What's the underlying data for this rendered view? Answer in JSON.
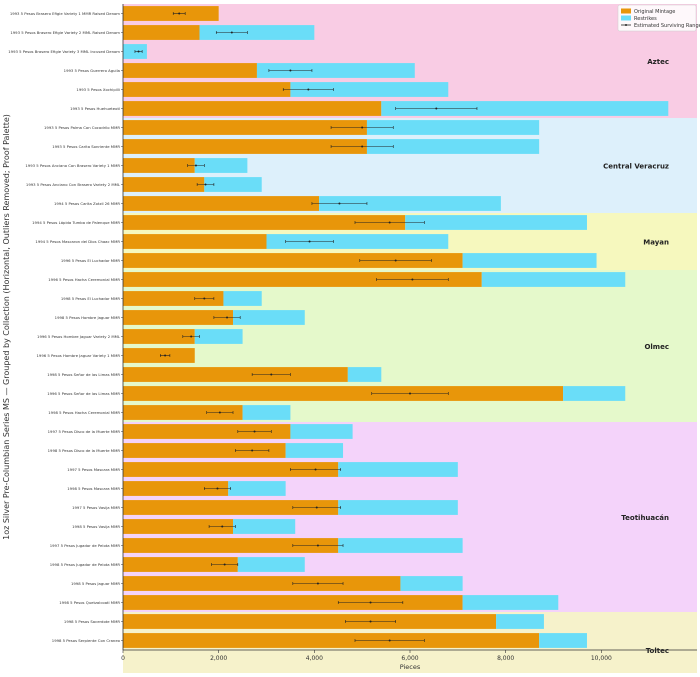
{
  "chart_data": {
    "type": "bar",
    "orientation": "horizontal",
    "stacked": true,
    "title": "",
    "xlabel": "Pieces",
    "ylabel": "1oz Silver Pre-Columbian Series MS — Grouped by Collection (Horizontal, Outliers Removed; Proof Palette)",
    "xlim": [
      0,
      12000
    ],
    "xticks": [
      0,
      2000,
      4000,
      6000,
      8000,
      10000
    ],
    "xtick_labels": [
      "0",
      "2,000",
      "4,000",
      "6,000",
      "8,000",
      "10,000"
    ],
    "grid": false,
    "legend_position": "top-right",
    "legend": [
      {
        "name": "Original Mintage",
        "color": "#E8960A",
        "kind": "bar"
      },
      {
        "name": "Restrikes",
        "color": "#6ADDF8",
        "kind": "bar"
      },
      {
        "name": "Estimated Surviving Range",
        "color": "#222222",
        "kind": "errorbar"
      }
    ],
    "colors": {
      "original": "#E8960A",
      "restrikes": "#6ADDF8",
      "errorbar": "#222222"
    },
    "groups": [
      {
        "name": "Aztec",
        "color": "#F9CCE4",
        "start": 0,
        "end": 5
      },
      {
        "name": "Central Veracruz",
        "color": "#DDF0FB",
        "start": 6,
        "end": 10
      },
      {
        "name": "Mayan",
        "color": "#F6F8BE",
        "start": 11,
        "end": 13
      },
      {
        "name": "Olmec",
        "color": "#E5F9CB",
        "start": 14,
        "end": 21
      },
      {
        "name": "Teotihuacán",
        "color": "#F4D3FA",
        "start": 22,
        "end": 31
      },
      {
        "name": "Toltec",
        "color": "#F6F2CB",
        "start": 32,
        "end": 35
      }
    ],
    "categories": [
      "1993 5 Pesos Brasero Efigie Variety 1 MMR Raised Denom",
      "1993 5 Pesos Brasero Efigie Variety 2 MML Raised Denom",
      "1993 5 Pesos Brasero Efigie Variety 3 MML Incused Denom",
      "1993 5 Pesos Guerrero Aguila",
      "1993 5 Pesos Xochipilli",
      "1993 5 Pesos Huehueteotl",
      "1993 5 Pesos Palma Con Cocodrilo MMR",
      "1993 5 Pesos Carita Sonriente MMR",
      "1993 5 Pesos Anciano Con Brasero Variety 1 MMR",
      "1993 5 Pesos Anciano Con Brasero Variety 2 MML",
      "1994 5 Pesos Carita Zotzil 26 MMR",
      "1994 5 Pesos Lápida Tumba de Palenque MMR",
      "1994 5 Pesos Mascaron del Dios Chaac MMR",
      "1996 5 Pesos El Luchador MMR",
      "1996 5 Pesos Hacha Ceremonial MMR",
      "1998 5 Pesos El Luchador MMR",
      "1998 5 Pesos Hombre Jaguar MMR",
      "1996 5 Pesos Hombre Jaguar Variety 2 MML",
      "1996 5 Pesos Hombre Jaguar Variety 1 MMR",
      "1998 5 Pesos Señor de las Limas MMR",
      "1996 5 Pesos Señor de las Limas MMR",
      "1998 5 Pesos Hacha Ceremonial MMR",
      "1997 5 Pesos Disco de la Muerte MMR",
      "1998 5 Pesos Disco de la Muerte MMR",
      "1997 5 Pesos Mascara MMR",
      "1998 5 Pesos Mascara MMR",
      "1997 5 Pesos Vasija MMR",
      "1998 5 Pesos Vasija MMR",
      "1997 5 Pesos Jugador de Pelota MMR",
      "1998 5 Pesos Jugador de Pelota MMR",
      "1998 5 Pesos Jaguar MMR",
      "1998 5 Pesos Quetzalcoatl MMR",
      "1998 5 Pesos Sacerdote MMR",
      "1998 5 Pesos Serpiente Con Craneo"
    ],
    "series": [
      {
        "name": "Original Mintage",
        "values": [
          2000,
          1600,
          0,
          2800,
          3500,
          5400,
          5100,
          5100,
          1500,
          1700,
          4100,
          5900,
          3000,
          7100,
          7500,
          2100,
          2300,
          1500,
          1500,
          4700,
          9200,
          2500,
          3500,
          3400,
          4500,
          2200,
          4500,
          2300,
          4500,
          2400,
          5800,
          7100,
          7800,
          8700
        ]
      },
      {
        "name": "Restrikes",
        "values": [
          0,
          2400,
          500,
          3300,
          3300,
          6000,
          3600,
          3600,
          1100,
          1200,
          3800,
          3800,
          3800,
          2800,
          3000,
          800,
          1500,
          1000,
          0,
          700,
          1300,
          1000,
          1300,
          1200,
          2500,
          1200,
          2500,
          1300,
          2600,
          1400,
          1300,
          2000,
          1000,
          1000
        ]
      }
    ],
    "error_ranges": [
      [
        1050,
        1300
      ],
      [
        1950,
        2600
      ],
      [
        250,
        400
      ],
      [
        3050,
        3950
      ],
      [
        3350,
        4400
      ],
      [
        5700,
        7400
      ],
      [
        4350,
        5650
      ],
      [
        4350,
        5650
      ],
      [
        1350,
        1700
      ],
      [
        1550,
        1900
      ],
      [
        3950,
        5100
      ],
      [
        4850,
        6300
      ],
      [
        3400,
        4400
      ],
      [
        4950,
        6450
      ],
      [
        5300,
        6800
      ],
      [
        1500,
        1900
      ],
      [
        1900,
        2450
      ],
      [
        1250,
        1600
      ],
      [
        780,
        980
      ],
      [
        2700,
        3500
      ],
      [
        5200,
        6800
      ],
      [
        1750,
        2300
      ],
      [
        2400,
        3100
      ],
      [
        2350,
        3050
      ],
      [
        3500,
        4550
      ],
      [
        1700,
        2250
      ],
      [
        3550,
        4550
      ],
      [
        1800,
        2350
      ],
      [
        3550,
        4600
      ],
      [
        1850,
        2400
      ],
      [
        3550,
        4600
      ],
      [
        4500,
        5850
      ],
      [
        4650,
        5700
      ],
      [
        4850,
        6300
      ]
    ]
  }
}
